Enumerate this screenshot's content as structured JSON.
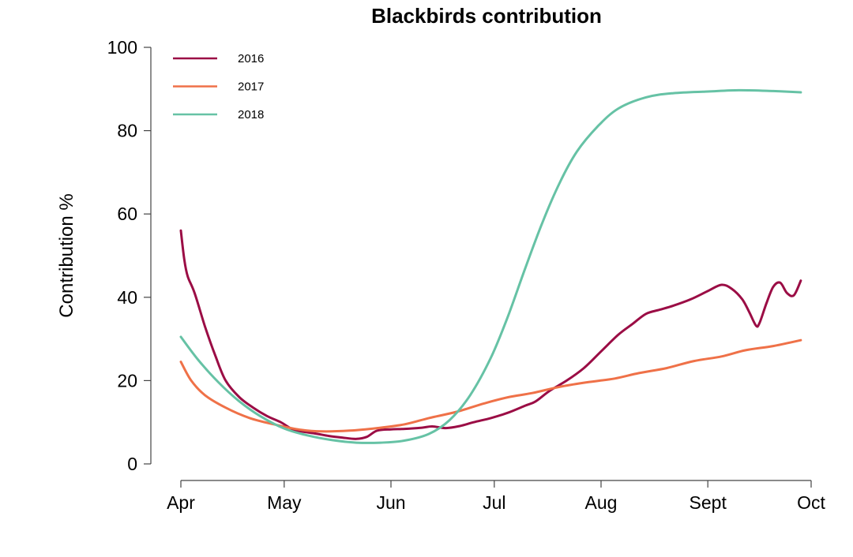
{
  "chart_data": {
    "type": "line",
    "title": "Blackbirds contribution",
    "xlabel": "",
    "ylabel": "Contribution %",
    "xlim": [
      "2016-04-01",
      "2016-10-01"
    ],
    "ylim": [
      0,
      100
    ],
    "x_ticks": [
      {
        "label": "Apr",
        "date": "2016-04-01"
      },
      {
        "label": "May",
        "date": "2016-05-01"
      },
      {
        "label": "Jun",
        "date": "2016-06-01"
      },
      {
        "label": "Jul",
        "date": "2016-07-01"
      },
      {
        "label": "Aug",
        "date": "2016-08-01"
      },
      {
        "label": "Sept",
        "date": "2016-09-01"
      },
      {
        "label": "Oct",
        "date": "2016-10-01"
      }
    ],
    "y_ticks": [
      0,
      20,
      40,
      60,
      80,
      100
    ],
    "grid": false,
    "legend_position": "top-left",
    "series": [
      {
        "name": "2016",
        "color": "#9b0d45",
        "points": [
          [
            "2016-04-01",
            56
          ],
          [
            "2016-04-02",
            49
          ],
          [
            "2016-04-03",
            45
          ],
          [
            "2016-04-05",
            41
          ],
          [
            "2016-04-08",
            33
          ],
          [
            "2016-04-11",
            26
          ],
          [
            "2016-04-14",
            20
          ],
          [
            "2016-04-18",
            16
          ],
          [
            "2016-04-22",
            13.5
          ],
          [
            "2016-04-26",
            11.5
          ],
          [
            "2016-04-30",
            10
          ],
          [
            "2016-05-03",
            8.5
          ],
          [
            "2016-05-06",
            7.8
          ],
          [
            "2016-05-10",
            7.3
          ],
          [
            "2016-05-14",
            6.7
          ],
          [
            "2016-05-18",
            6.3
          ],
          [
            "2016-05-22",
            6
          ],
          [
            "2016-05-25",
            6.5
          ],
          [
            "2016-05-28",
            8
          ],
          [
            "2016-06-01",
            8.3
          ],
          [
            "2016-06-05",
            8.4
          ],
          [
            "2016-06-10",
            8.7
          ],
          [
            "2016-06-13",
            9
          ],
          [
            "2016-06-17",
            8.6
          ],
          [
            "2016-06-21",
            9.1
          ],
          [
            "2016-06-25",
            10
          ],
          [
            "2016-06-30",
            11
          ],
          [
            "2016-07-05",
            12.3
          ],
          [
            "2016-07-10",
            14
          ],
          [
            "2016-07-13",
            15
          ],
          [
            "2016-07-17",
            17.5
          ],
          [
            "2016-07-22",
            20
          ],
          [
            "2016-07-27",
            23
          ],
          [
            "2016-08-01",
            27
          ],
          [
            "2016-08-06",
            31
          ],
          [
            "2016-08-10",
            33.5
          ],
          [
            "2016-08-14",
            36
          ],
          [
            "2016-08-18",
            37
          ],
          [
            "2016-08-22",
            38
          ],
          [
            "2016-08-27",
            39.5
          ],
          [
            "2016-09-01",
            41.5
          ],
          [
            "2016-09-05",
            43
          ],
          [
            "2016-09-08",
            42
          ],
          [
            "2016-09-11",
            39.5
          ],
          [
            "2016-09-13",
            36.5
          ],
          [
            "2016-09-15",
            33.2
          ],
          [
            "2016-09-16",
            33.8
          ],
          [
            "2016-09-18",
            38.5
          ],
          [
            "2016-09-20",
            42.5
          ],
          [
            "2016-09-22",
            43.5
          ],
          [
            "2016-09-24",
            41
          ],
          [
            "2016-09-26",
            40.5
          ],
          [
            "2016-09-28",
            44
          ]
        ]
      },
      {
        "name": "2017",
        "color": "#ef7148",
        "points": [
          [
            "2016-04-01",
            24.5
          ],
          [
            "2016-04-04",
            20
          ],
          [
            "2016-04-08",
            16.5
          ],
          [
            "2016-04-14",
            13.5
          ],
          [
            "2016-04-21",
            11
          ],
          [
            "2016-04-28",
            9.5
          ],
          [
            "2016-05-05",
            8.3
          ],
          [
            "2016-05-12",
            7.8
          ],
          [
            "2016-05-20",
            8
          ],
          [
            "2016-05-28",
            8.6
          ],
          [
            "2016-06-05",
            9.5
          ],
          [
            "2016-06-12",
            11
          ],
          [
            "2016-06-20",
            12.5
          ],
          [
            "2016-06-28",
            14.5
          ],
          [
            "2016-07-05",
            16
          ],
          [
            "2016-07-12",
            17
          ],
          [
            "2016-07-20",
            18.5
          ],
          [
            "2016-07-28",
            19.6
          ],
          [
            "2016-08-05",
            20.5
          ],
          [
            "2016-08-12",
            21.8
          ],
          [
            "2016-08-20",
            23
          ],
          [
            "2016-08-28",
            24.7
          ],
          [
            "2016-09-05",
            25.8
          ],
          [
            "2016-09-12",
            27.3
          ],
          [
            "2016-09-20",
            28.3
          ],
          [
            "2016-09-28",
            29.7
          ]
        ]
      },
      {
        "name": "2018",
        "color": "#66c2a5",
        "points": [
          [
            "2016-04-01",
            30.5
          ],
          [
            "2016-04-06",
            25
          ],
          [
            "2016-04-12",
            19.5
          ],
          [
            "2016-04-18",
            15
          ],
          [
            "2016-04-24",
            11.5
          ],
          [
            "2016-05-01",
            8.5
          ],
          [
            "2016-05-08",
            6.8
          ],
          [
            "2016-05-15",
            5.7
          ],
          [
            "2016-05-22",
            5.1
          ],
          [
            "2016-05-29",
            5.1
          ],
          [
            "2016-06-05",
            5.6
          ],
          [
            "2016-06-12",
            7.2
          ],
          [
            "2016-06-18",
            10.5
          ],
          [
            "2016-06-24",
            16.5
          ],
          [
            "2016-06-30",
            25.5
          ],
          [
            "2016-07-05",
            35.5
          ],
          [
            "2016-07-10",
            47
          ],
          [
            "2016-07-15",
            58
          ],
          [
            "2016-07-20",
            67.5
          ],
          [
            "2016-07-25",
            75
          ],
          [
            "2016-07-31",
            81
          ],
          [
            "2016-08-06",
            85.3
          ],
          [
            "2016-08-14",
            88
          ],
          [
            "2016-08-22",
            89
          ],
          [
            "2016-09-01",
            89.4
          ],
          [
            "2016-09-10",
            89.7
          ],
          [
            "2016-09-20",
            89.5
          ],
          [
            "2016-09-28",
            89.2
          ]
        ]
      }
    ]
  }
}
